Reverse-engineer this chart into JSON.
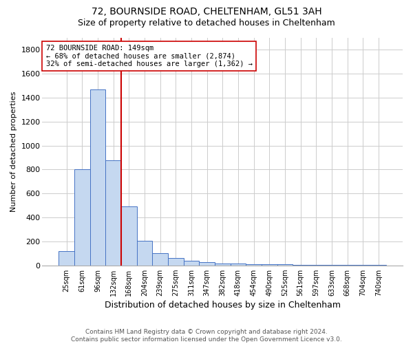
{
  "title_line1": "72, BOURNSIDE ROAD, CHELTENHAM, GL51 3AH",
  "title_line2": "Size of property relative to detached houses in Cheltenham",
  "xlabel": "Distribution of detached houses by size in Cheltenham",
  "ylabel": "Number of detached properties",
  "footer_line1": "Contains HM Land Registry data © Crown copyright and database right 2024.",
  "footer_line2": "Contains public sector information licensed under the Open Government Licence v3.0.",
  "categories": [
    "25sqm",
    "61sqm",
    "96sqm",
    "132sqm",
    "168sqm",
    "204sqm",
    "239sqm",
    "275sqm",
    "311sqm",
    "347sqm",
    "382sqm",
    "418sqm",
    "454sqm",
    "490sqm",
    "525sqm",
    "561sqm",
    "597sqm",
    "633sqm",
    "668sqm",
    "704sqm",
    "740sqm"
  ],
  "values": [
    120,
    800,
    1470,
    875,
    490,
    205,
    100,
    60,
    38,
    25,
    18,
    15,
    12,
    10,
    8,
    6,
    5,
    4,
    3,
    2,
    2
  ],
  "bar_color": "#c5d8f0",
  "bar_edge_color": "#4472c4",
  "vline_x_index": 3,
  "vline_color": "#cc0000",
  "annotation_text_line1": "72 BOURNSIDE ROAD: 149sqm",
  "annotation_text_line2": "← 68% of detached houses are smaller (2,874)",
  "annotation_text_line3": "32% of semi-detached houses are larger (1,362) →",
  "annotation_box_color": "#ffffff",
  "annotation_box_edge": "#cc0000",
  "ylim": [
    0,
    1900
  ],
  "yticks": [
    0,
    200,
    400,
    600,
    800,
    1000,
    1200,
    1400,
    1600,
    1800
  ],
  "grid_color": "#cccccc",
  "background_color": "#ffffff",
  "fig_width": 6.0,
  "fig_height": 5.0,
  "dpi": 100
}
